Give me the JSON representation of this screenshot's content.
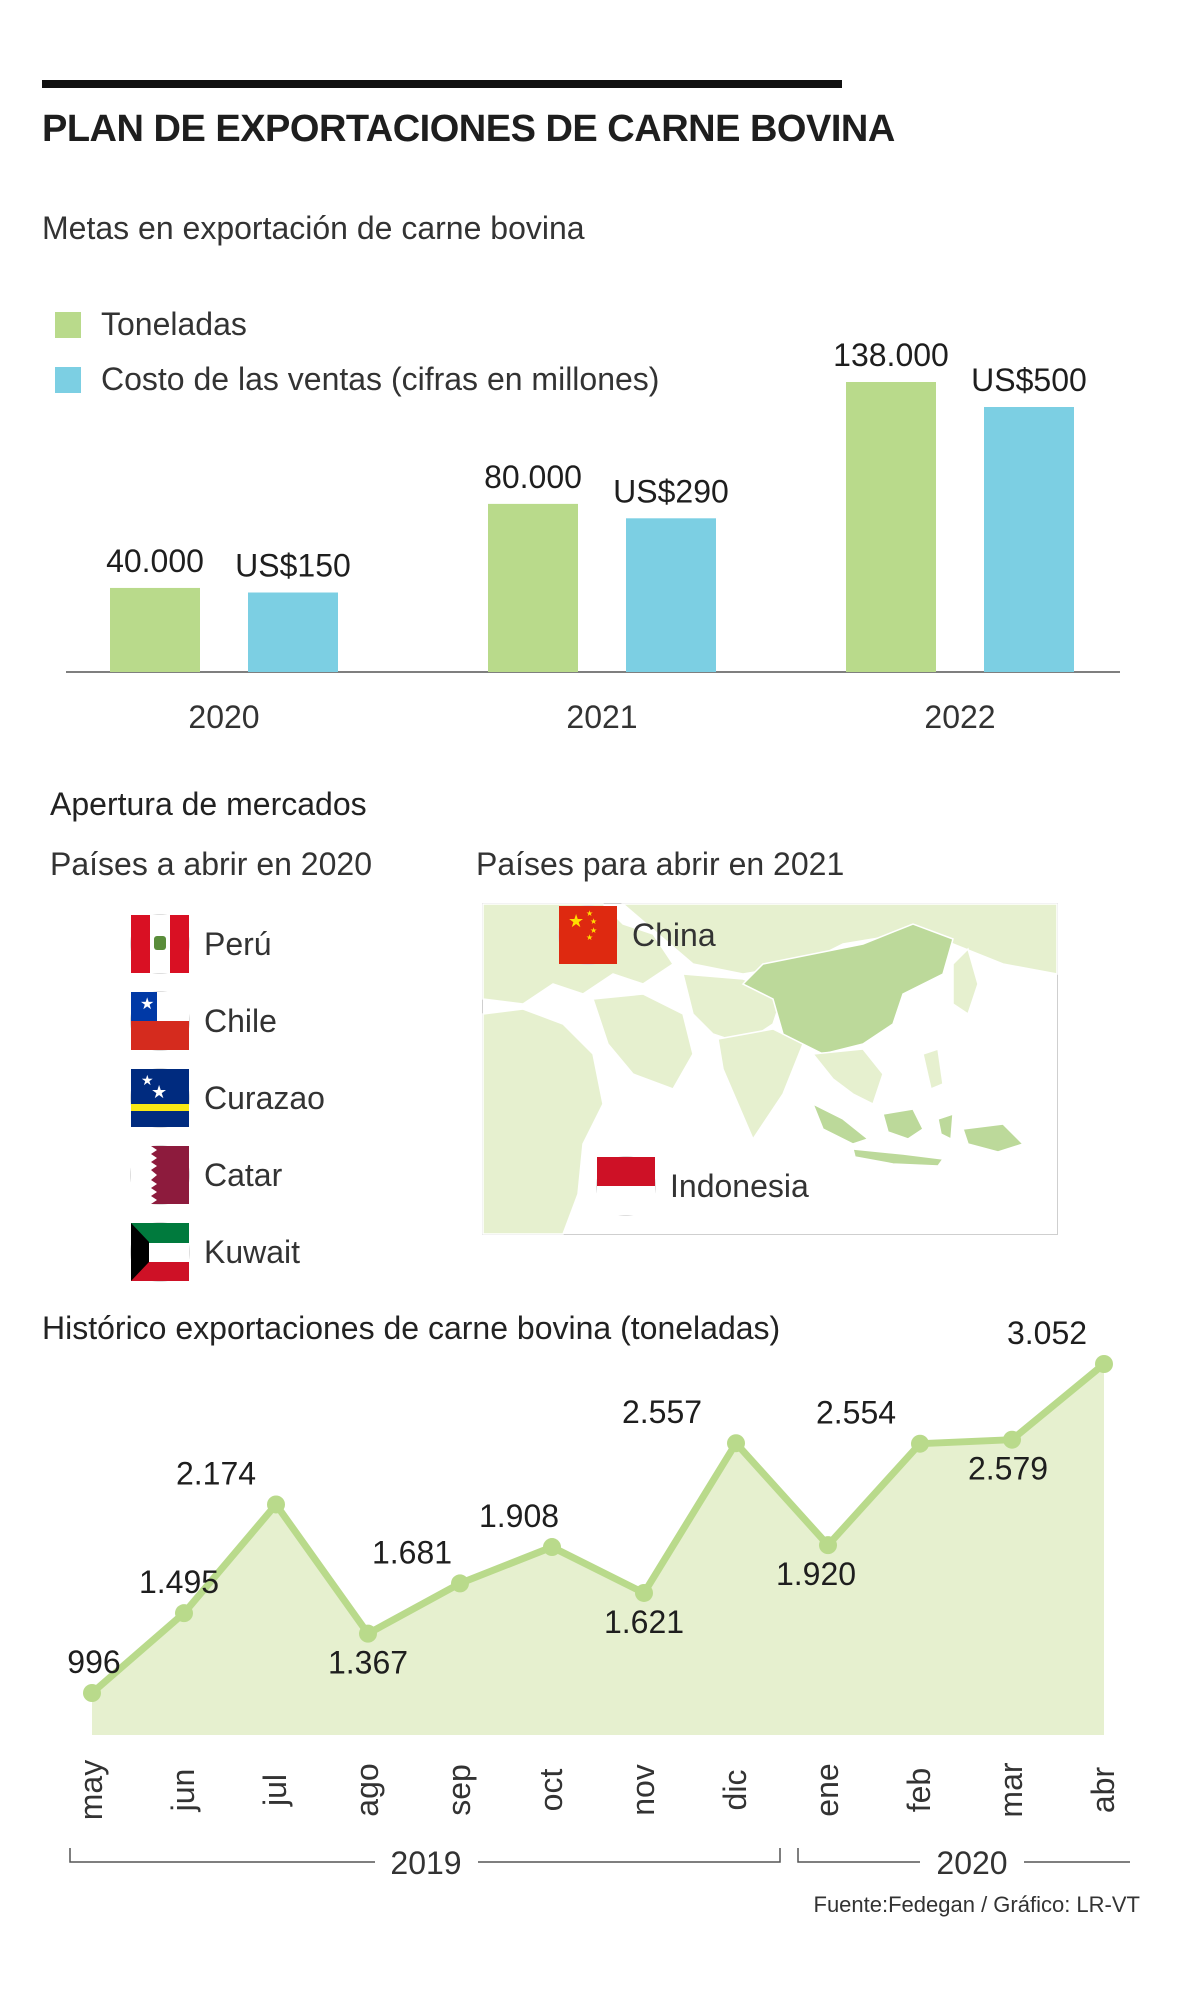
{
  "header": {
    "title": "PLAN DE EXPORTACIONES DE CARNE BOVINA",
    "subtitle": "Metas en exportación de carne bovina"
  },
  "legend": {
    "tons_label": "Toneladas",
    "cost_label": "Costo de las ventas (cifras en millones)",
    "tons_color": "#b9da8b",
    "cost_color": "#7ccfe3"
  },
  "markets": {
    "heading": "Apertura de mercados",
    "col_2020": "Países a abrir en 2020",
    "col_2021": "Países para abrir en 2021",
    "countries_2020": [
      {
        "name": "Perú",
        "flag": "peru-flag-icon"
      },
      {
        "name": "Chile",
        "flag": "chile-flag-icon"
      },
      {
        "name": "Curazao",
        "flag": "curacao-flag-icon"
      },
      {
        "name": "Catar",
        "flag": "qatar-flag-icon"
      },
      {
        "name": "Kuwait",
        "flag": "kuwait-flag-icon"
      }
    ],
    "countries_2021": [
      {
        "name": "China",
        "flag": "china-flag-icon"
      },
      {
        "name": "Indonesia",
        "flag": "indonesia-flag-icon"
      }
    ]
  },
  "history": {
    "heading": "Histórico exportaciones de carne bovina (toneladas)",
    "year_2019": "2019",
    "year_2020": "2020"
  },
  "source": "Fuente:Fedegan / Gráfico: LR-VT",
  "chart_data": [
    {
      "type": "bar",
      "title": "Metas en exportación de carne bovina",
      "categories": [
        "2020",
        "2021",
        "2022"
      ],
      "series": [
        {
          "name": "Toneladas",
          "values": [
            40000,
            80000,
            138000
          ],
          "labels": [
            "40.000",
            "80.000",
            "138.000"
          ],
          "color": "#b9da8b"
        },
        {
          "name": "Costo de las ventas (cifras en millones)",
          "values": [
            150,
            290,
            500
          ],
          "labels": [
            "US$150",
            "US$290",
            "US$500"
          ],
          "color": "#7ccfe3"
        }
      ],
      "legend": "top-left",
      "grid": false
    },
    {
      "type": "area",
      "title": "Histórico exportaciones de carne bovina (toneladas)",
      "x": [
        "may",
        "jun",
        "jul",
        "ago",
        "sep",
        "oct",
        "nov",
        "dic",
        "ene",
        "feb",
        "mar",
        "abr"
      ],
      "values": [
        996,
        1495,
        2174,
        1367,
        1681,
        1908,
        1621,
        2557,
        1920,
        2554,
        2579,
        3052
      ],
      "labels": [
        "996",
        "1.495",
        "2.174",
        "1.367",
        "1.681",
        "1.908",
        "1.621",
        "2.557",
        "1.920",
        "2.554",
        "2.579",
        "3.052"
      ],
      "line_color": "#b9da8b",
      "fill_color": "#e6f0cf",
      "grid": false
    }
  ]
}
